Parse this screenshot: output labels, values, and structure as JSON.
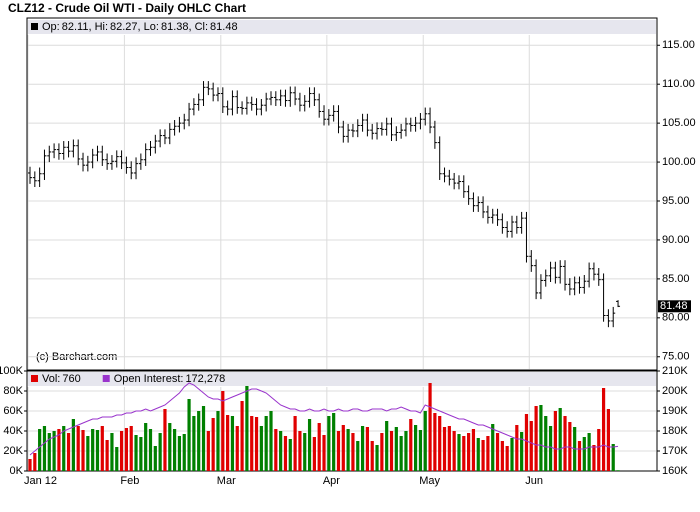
{
  "chart_data": [
    {
      "type": "ohlc",
      "title": "CLZ12 - Crude Oil WTI - Daily OHLC Chart",
      "watermark": "(c) Barchart.com",
      "legend_labels": [
        "Op:",
        ", Hi:",
        ", Lo:",
        ", Cl:"
      ],
      "color": "#000000",
      "categories": [
        "Jan 12",
        null,
        null,
        null,
        null,
        null,
        null,
        null,
        null,
        null,
        null,
        null,
        null,
        null,
        null,
        null,
        null,
        null,
        null,
        null,
        "Feb",
        null,
        null,
        null,
        null,
        null,
        null,
        null,
        null,
        null,
        null,
        null,
        null,
        null,
        null,
        null,
        null,
        null,
        null,
        null,
        "Mar",
        null,
        null,
        null,
        null,
        null,
        null,
        null,
        null,
        null,
        null,
        null,
        null,
        null,
        null,
        null,
        null,
        null,
        null,
        null,
        null,
        null,
        "Apr",
        null,
        null,
        null,
        null,
        null,
        null,
        null,
        null,
        null,
        null,
        null,
        null,
        null,
        null,
        null,
        null,
        null,
        null,
        null,
        "May",
        null,
        null,
        null,
        null,
        null,
        null,
        null,
        null,
        null,
        null,
        null,
        null,
        null,
        null,
        null,
        null,
        null,
        null,
        null,
        null,
        null,
        "Jun",
        null,
        null,
        null,
        null,
        null,
        null,
        null,
        null,
        null,
        null,
        null,
        null,
        null,
        null,
        null,
        null,
        null,
        null
      ],
      "open": [
        98.6,
        98.0,
        97.6,
        98.5,
        100.8,
        101.3,
        101.6,
        101.1,
        101.9,
        101.4,
        102.1,
        100.4,
        99.6,
        100.0,
        100.9,
        101.3,
        100.3,
        99.8,
        100.1,
        100.7,
        99.9,
        99.3,
        98.6,
        99.8,
        100.3,
        101.6,
        101.9,
        102.7,
        103.4,
        103.1,
        104.2,
        104.6,
        105.0,
        105.4,
        106.8,
        107.4,
        108.0,
        109.6,
        109.4,
        108.6,
        108.8,
        107.1,
        106.8,
        108.4,
        107.0,
        106.9,
        107.6,
        107.4,
        106.8,
        107.3,
        108.1,
        108.3,
        108.0,
        108.5,
        107.9,
        108.9,
        108.1,
        107.3,
        107.8,
        108.8,
        108.0,
        106.5,
        105.5,
        106.0,
        106.5,
        104.5,
        103.3,
        104.1,
        104.0,
        104.7,
        105.4,
        104.1,
        103.7,
        104.3,
        104.2,
        104.9,
        103.5,
        103.8,
        104.1,
        104.9,
        104.7,
        105.0,
        105.5,
        106.2,
        104.5,
        102.5,
        98.5,
        98.2,
        97.8,
        97.3,
        97.5,
        96.2,
        95.3,
        94.4,
        94.8,
        93.6,
        92.9,
        93.2,
        92.6,
        91.6,
        91.1,
        92.3,
        91.6,
        92.8,
        87.9,
        86.7,
        83.2,
        84.8,
        85.4,
        86.4,
        85.2,
        86.6,
        84.3,
        83.7,
        84.5,
        83.9,
        84.7,
        86.3,
        85.6,
        84.9,
        80.3,
        79.6,
        82.11
      ],
      "high": [
        99.4,
        98.8,
        99.3,
        101.6,
        102.1,
        102.4,
        102.4,
        102.7,
        102.7,
        102.9,
        102.9,
        101.2,
        100.8,
        101.7,
        102.1,
        102.1,
        101.1,
        100.9,
        101.5,
        101.5,
        100.7,
        100.1,
        100.6,
        101.1,
        102.4,
        102.7,
        103.5,
        104.2,
        104.2,
        105.0,
        105.4,
        105.8,
        106.2,
        107.6,
        108.2,
        108.8,
        110.4,
        110.4,
        110.2,
        109.6,
        109.6,
        107.9,
        109.2,
        109.2,
        107.8,
        108.4,
        108.4,
        108.2,
        108.1,
        108.9,
        109.1,
        109.1,
        109.3,
        109.3,
        109.7,
        109.7,
        108.9,
        108.6,
        109.6,
        109.6,
        108.8,
        107.3,
        106.8,
        107.3,
        107.3,
        105.3,
        104.9,
        104.9,
        105.5,
        106.2,
        106.2,
        104.9,
        105.1,
        105.1,
        105.7,
        105.7,
        104.6,
        104.9,
        105.7,
        105.7,
        105.8,
        106.3,
        107.0,
        107.0,
        105.3,
        103.3,
        99.3,
        99.0,
        98.6,
        98.3,
        98.3,
        97.0,
        96.1,
        95.6,
        95.6,
        94.4,
        94.0,
        94.0,
        93.4,
        92.4,
        93.1,
        93.1,
        93.6,
        93.6,
        88.7,
        87.5,
        85.6,
        86.2,
        87.2,
        87.2,
        87.4,
        87.4,
        85.1,
        85.3,
        85.3,
        85.5,
        87.1,
        87.1,
        86.4,
        85.7,
        81.1,
        81.4,
        82.27
      ],
      "low": [
        97.2,
        96.8,
        96.8,
        97.7,
        100.0,
        100.5,
        100.3,
        100.3,
        100.6,
        100.6,
        99.6,
        98.8,
        98.8,
        99.2,
        100.1,
        99.5,
        99.0,
        99.0,
        99.3,
        99.1,
        98.5,
        97.8,
        97.8,
        99.0,
        99.5,
        100.8,
        101.1,
        101.9,
        102.3,
        102.3,
        103.4,
        103.8,
        104.2,
        104.6,
        106.0,
        106.6,
        107.2,
        108.6,
        107.8,
        107.8,
        106.3,
        106.0,
        106.0,
        106.2,
        106.1,
        106.1,
        106.6,
        106.0,
        106.0,
        106.5,
        107.3,
        107.2,
        107.2,
        107.1,
        107.1,
        107.3,
        106.5,
        106.5,
        107.0,
        107.2,
        105.7,
        104.7,
        104.7,
        105.2,
        103.7,
        102.5,
        102.5,
        103.2,
        103.2,
        103.9,
        103.3,
        102.9,
        102.9,
        103.4,
        103.4,
        102.7,
        102.7,
        103.0,
        103.3,
        103.9,
        103.9,
        104.2,
        104.7,
        103.7,
        101.7,
        97.7,
        97.4,
        97.0,
        96.5,
        96.5,
        95.4,
        94.5,
        93.6,
        93.6,
        92.8,
        92.1,
        92.1,
        91.8,
        90.8,
        90.3,
        90.3,
        90.8,
        90.8,
        87.1,
        85.9,
        82.4,
        82.4,
        84.0,
        84.6,
        84.4,
        84.4,
        83.5,
        82.9,
        82.9,
        83.1,
        83.1,
        83.9,
        84.8,
        84.1,
        79.5,
        78.8,
        78.8,
        81.38
      ],
      "close": [
        98.0,
        97.6,
        98.5,
        100.8,
        101.3,
        101.6,
        101.1,
        101.9,
        101.4,
        102.1,
        100.4,
        99.6,
        100.0,
        100.9,
        101.3,
        100.3,
        99.8,
        100.1,
        100.7,
        99.9,
        99.3,
        98.6,
        99.8,
        100.3,
        101.6,
        101.9,
        102.7,
        103.4,
        103.1,
        104.2,
        104.6,
        105.0,
        105.4,
        106.8,
        107.4,
        108.0,
        109.6,
        109.4,
        108.6,
        108.8,
        107.1,
        106.8,
        108.4,
        107.0,
        106.9,
        107.6,
        107.4,
        106.8,
        107.3,
        108.1,
        108.3,
        108.0,
        108.5,
        107.9,
        108.9,
        108.1,
        107.3,
        107.8,
        108.8,
        108.0,
        106.5,
        105.5,
        106.0,
        106.5,
        104.5,
        103.3,
        104.1,
        104.0,
        104.7,
        105.4,
        104.1,
        103.7,
        104.3,
        104.2,
        104.9,
        103.5,
        103.8,
        104.1,
        104.9,
        104.7,
        105.0,
        105.5,
        106.2,
        104.5,
        102.5,
        98.5,
        98.2,
        97.8,
        97.3,
        97.5,
        96.2,
        95.3,
        94.4,
        94.8,
        93.6,
        92.9,
        93.2,
        92.6,
        91.6,
        91.1,
        92.3,
        91.6,
        92.8,
        87.9,
        86.7,
        83.2,
        84.8,
        85.4,
        86.4,
        85.2,
        86.6,
        84.3,
        83.7,
        84.5,
        83.9,
        84.7,
        86.3,
        85.6,
        84.9,
        80.3,
        79.6,
        80.6,
        81.48
      ],
      "ylim": [
        73.3,
        118.5
      ],
      "yticks": [
        {
          "value": 75,
          "label": "75.00"
        },
        {
          "value": 80,
          "label": "80.00"
        },
        {
          "value": 85,
          "label": "85.00"
        },
        {
          "value": 90,
          "label": "90.00"
        },
        {
          "value": 95,
          "label": "95.00"
        },
        {
          "value": 100,
          "label": "100.00"
        },
        {
          "value": 105,
          "label": "105.00"
        },
        {
          "value": 110,
          "label": "110.00"
        },
        {
          "value": 115,
          "label": "115.00"
        }
      ],
      "grid": true
    },
    {
      "type": "bar",
      "up_color": "#008000",
      "down_color": "#e00000",
      "series": [
        {
          "name": "Vol:",
          "color": "#e00000",
          "values": [
            12000,
            18000,
            42000,
            45000,
            38000,
            40000,
            42000,
            45000,
            38000,
            52000,
            45000,
            41000,
            35000,
            42000,
            41000,
            45000,
            31000,
            38000,
            24000,
            40000,
            43000,
            45000,
            36000,
            34000,
            48000,
            42000,
            25000,
            38000,
            62000,
            48000,
            42000,
            35000,
            37000,
            72000,
            55000,
            60000,
            65000,
            40000,
            53000,
            60000,
            80000,
            56000,
            55000,
            45000,
            70000,
            85000,
            55000,
            54000,
            45000,
            55000,
            60000,
            42000,
            40000,
            35000,
            32000,
            55000,
            40000,
            38000,
            52000,
            34000,
            48000,
            36000,
            55000,
            58000,
            40000,
            46000,
            42000,
            38000,
            30000,
            45000,
            44000,
            30000,
            26000,
            38000,
            50000,
            40000,
            44000,
            35000,
            40000,
            52000,
            46000,
            41000,
            60000,
            88000,
            58000,
            55000,
            44000,
            45000,
            40000,
            37000,
            35000,
            38000,
            42000,
            33000,
            31000,
            35000,
            47000,
            38000,
            30000,
            25000,
            33000,
            46000,
            39000,
            57000,
            50000,
            65000,
            66000,
            55000,
            45000,
            60000,
            63000,
            55000,
            49000,
            44000,
            30000,
            34000,
            38000,
            26000,
            42000,
            83000,
            62000,
            27000,
            760
          ]
        },
        {
          "name": "Open Interest:",
          "type": "line",
          "axis": "y2",
          "color": "#9933cc",
          "last_value_label": "172,278",
          "values": [
            168000,
            170000,
            172000,
            174000,
            176000,
            177000,
            178000,
            180000,
            181000,
            182000,
            183000,
            184000,
            185000,
            186000,
            186000,
            187000,
            187000,
            187000,
            188000,
            188000,
            189000,
            189000,
            190000,
            190000,
            191000,
            190000,
            191000,
            192000,
            193000,
            195000,
            197000,
            199000,
            202000,
            204000,
            203000,
            201000,
            199000,
            197000,
            196000,
            196000,
            195000,
            196000,
            197000,
            198000,
            199000,
            200000,
            201000,
            201000,
            200000,
            199000,
            197000,
            195000,
            193000,
            192000,
            191000,
            191000,
            190000,
            190000,
            191000,
            190000,
            190000,
            191000,
            190000,
            190000,
            191000,
            190000,
            190000,
            191000,
            191000,
            190000,
            190000,
            191000,
            191000,
            191000,
            190000,
            191000,
            191000,
            192000,
            191000,
            190000,
            190000,
            189000,
            193000,
            192000,
            191000,
            190000,
            189000,
            188000,
            187000,
            186000,
            186000,
            185000,
            184000,
            183000,
            183000,
            182000,
            181000,
            180000,
            179000,
            178000,
            177000,
            176000,
            176000,
            175000,
            174000,
            173000,
            173000,
            172000,
            172000,
            171000,
            171000,
            172000,
            172000,
            171000,
            171000,
            171000,
            172000,
            172000,
            172000,
            173000,
            172000,
            172000,
            172278
          ]
        }
      ],
      "ylim": [
        0,
        100000
      ],
      "yticks": [
        {
          "value": 0,
          "label": "0K"
        },
        {
          "value": 20000,
          "label": "20K"
        },
        {
          "value": 40000,
          "label": "40K"
        },
        {
          "value": 60000,
          "label": "60K"
        },
        {
          "value": 80000,
          "label": "80K"
        },
        {
          "value": 100000,
          "label": "100K"
        }
      ],
      "y2lim": [
        160000,
        210000
      ],
      "y2ticks": [
        {
          "value": 160000,
          "label": "160K"
        },
        {
          "value": 170000,
          "label": "170K"
        },
        {
          "value": 180000,
          "label": "180K"
        },
        {
          "value": 190000,
          "label": "190K"
        },
        {
          "value": 200000,
          "label": "200K"
        },
        {
          "value": 210000,
          "label": "210K"
        }
      ],
      "grid": true
    }
  ]
}
